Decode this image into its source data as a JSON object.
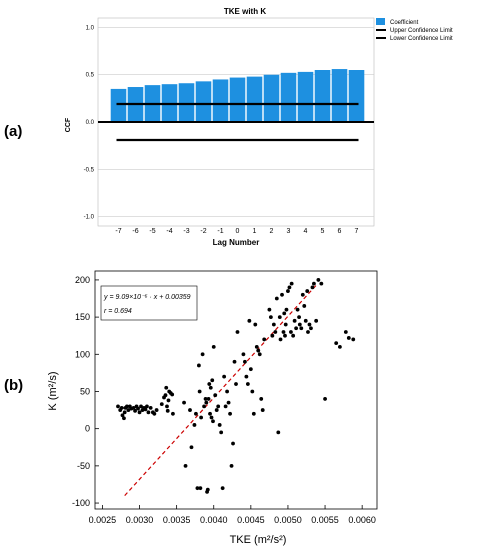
{
  "panel_a": {
    "label": "(a)",
    "chart_data": {
      "type": "bar",
      "title": "TKE with K",
      "xlabel": "Lag Number",
      "ylabel": "CCF",
      "ylim": [
        -1.1,
        1.1
      ],
      "yticks": [
        "1.0",
        "0.5",
        "0.0",
        "-0.5",
        "-1.0"
      ],
      "categories": [
        "-7",
        "-6",
        "-5",
        "-4",
        "-3",
        "-2",
        "-1",
        "0",
        "1",
        "2",
        "3",
        "4",
        "5",
        "6",
        "7"
      ],
      "series": [
        {
          "name": "Coefficient",
          "values": [
            0.35,
            0.37,
            0.39,
            0.4,
            0.41,
            0.43,
            0.45,
            0.47,
            0.48,
            0.5,
            0.52,
            0.53,
            0.55,
            0.56,
            0.55
          ]
        }
      ],
      "upper_confidence_limit": 0.19,
      "lower_confidence_limit": -0.19,
      "legend": [
        "Coefficient",
        "Upper Confidence Limit",
        "Lower Confidence Limit"
      ],
      "legend_position": "top-right",
      "colors": {
        "bar": "#1e90e0",
        "limit": "#000000",
        "zero_line": "#000000",
        "grid": "#cccccc"
      }
    }
  },
  "panel_b": {
    "label": "(b)",
    "chart_data": {
      "type": "scatter",
      "xlabel": "TKE (m²/s²)",
      "ylabel": "K (m²/s)",
      "xlim": [
        0.0024,
        0.0062
      ],
      "ylim": [
        -108,
        212
      ],
      "xticks": [
        "0.0025",
        "0.0030",
        "0.0035",
        "0.0040",
        "0.0045",
        "0.0050",
        "0.0055",
        "0.0060"
      ],
      "yticks": [
        "-100",
        "-50",
        "0",
        "50",
        "100",
        "150",
        "200"
      ],
      "annotation": {
        "equation": "y = 9.09×10⁻⁶ · x + 0.00359",
        "r": "r = 0.694"
      },
      "fit_line": {
        "x0": 0.0028,
        "y0": -90,
        "x1": 0.0054,
        "y1": 195,
        "color": "#cc0000",
        "style": "dashed"
      },
      "points": [
        [
          0.00271,
          30
        ],
        [
          0.00274,
          25
        ],
        [
          0.00276,
          28
        ],
        [
          0.00277,
          18
        ],
        [
          0.00279,
          14
        ],
        [
          0.0028,
          22
        ],
        [
          0.00281,
          28
        ],
        [
          0.00283,
          30
        ],
        [
          0.00285,
          25
        ],
        [
          0.00287,
          30
        ],
        [
          0.00289,
          27
        ],
        [
          0.00292,
          28
        ],
        [
          0.00294,
          24
        ],
        [
          0.00296,
          30
        ],
        [
          0.00298,
          27
        ],
        [
          0.003,
          22
        ],
        [
          0.00302,
          30
        ],
        [
          0.00304,
          25
        ],
        [
          0.00306,
          28
        ],
        [
          0.00308,
          26
        ],
        [
          0.0031,
          30
        ],
        [
          0.00312,
          22
        ],
        [
          0.00315,
          28
        ],
        [
          0.00318,
          22
        ],
        [
          0.0032,
          20
        ],
        [
          0.00323,
          25
        ],
        [
          0.0033,
          33
        ],
        [
          0.00333,
          42
        ],
        [
          0.00335,
          45
        ],
        [
          0.00336,
          55
        ],
        [
          0.00337,
          30
        ],
        [
          0.00338,
          24
        ],
        [
          0.00339,
          38
        ],
        [
          0.0034,
          50
        ],
        [
          0.00342,
          48
        ],
        [
          0.00344,
          46
        ],
        [
          0.00345,
          20
        ],
        [
          0.0036,
          35
        ],
        [
          0.00362,
          -50
        ],
        [
          0.00368,
          25
        ],
        [
          0.0037,
          -25
        ],
        [
          0.00374,
          5
        ],
        [
          0.00376,
          20
        ],
        [
          0.00378,
          -80
        ],
        [
          0.0038,
          85
        ],
        [
          0.00381,
          50
        ],
        [
          0.00382,
          -80
        ],
        [
          0.00383,
          15
        ],
        [
          0.00385,
          100
        ],
        [
          0.00387,
          30
        ],
        [
          0.00389,
          40
        ],
        [
          0.0039,
          35
        ],
        [
          0.00391,
          -85
        ],
        [
          0.00392,
          -82
        ],
        [
          0.00393,
          40
        ],
        [
          0.00394,
          60
        ],
        [
          0.00395,
          20
        ],
        [
          0.00396,
          55
        ],
        [
          0.00397,
          15
        ],
        [
          0.00398,
          65
        ],
        [
          0.00399,
          10
        ],
        [
          0.004,
          110
        ],
        [
          0.00402,
          45
        ],
        [
          0.00404,
          25
        ],
        [
          0.00406,
          30
        ],
        [
          0.00408,
          5
        ],
        [
          0.0041,
          -5
        ],
        [
          0.00412,
          -80
        ],
        [
          0.00414,
          70
        ],
        [
          0.00416,
          30
        ],
        [
          0.00418,
          50
        ],
        [
          0.0042,
          35
        ],
        [
          0.00422,
          20
        ],
        [
          0.00424,
          -50
        ],
        [
          0.00426,
          -20
        ],
        [
          0.00428,
          90
        ],
        [
          0.0043,
          60
        ],
        [
          0.00432,
          130
        ],
        [
          0.0044,
          100
        ],
        [
          0.00442,
          90
        ],
        [
          0.00444,
          70
        ],
        [
          0.00446,
          60
        ],
        [
          0.00448,
          145
        ],
        [
          0.0045,
          80
        ],
        [
          0.00452,
          50
        ],
        [
          0.00454,
          20
        ],
        [
          0.00456,
          140
        ],
        [
          0.00458,
          110
        ],
        [
          0.0046,
          105
        ],
        [
          0.00462,
          100
        ],
        [
          0.00464,
          40
        ],
        [
          0.00466,
          25
        ],
        [
          0.00468,
          120
        ],
        [
          0.00475,
          160
        ],
        [
          0.00477,
          150
        ],
        [
          0.00479,
          125
        ],
        [
          0.00481,
          140
        ],
        [
          0.00483,
          130
        ],
        [
          0.00485,
          175
        ],
        [
          0.00487,
          -5
        ],
        [
          0.00489,
          150
        ],
        [
          0.0049,
          120
        ],
        [
          0.00492,
          180
        ],
        [
          0.00494,
          130
        ],
        [
          0.00495,
          155
        ],
        [
          0.00496,
          125
        ],
        [
          0.00497,
          140
        ],
        [
          0.00498,
          160
        ],
        [
          0.005,
          185
        ],
        [
          0.00502,
          190
        ],
        [
          0.00504,
          130
        ],
        [
          0.00505,
          195
        ],
        [
          0.00507,
          125
        ],
        [
          0.00509,
          145
        ],
        [
          0.00511,
          135
        ],
        [
          0.00513,
          160
        ],
        [
          0.00515,
          150
        ],
        [
          0.00516,
          140
        ],
        [
          0.00518,
          135
        ],
        [
          0.0052,
          180
        ],
        [
          0.00522,
          165
        ],
        [
          0.00524,
          145
        ],
        [
          0.00526,
          185
        ],
        [
          0.00527,
          130
        ],
        [
          0.00529,
          140
        ],
        [
          0.00531,
          135
        ],
        [
          0.00533,
          190
        ],
        [
          0.00535,
          195
        ],
        [
          0.00538,
          145
        ],
        [
          0.00541,
          200
        ],
        [
          0.00545,
          195
        ],
        [
          0.0055,
          40
        ],
        [
          0.00565,
          115
        ],
        [
          0.0057,
          110
        ],
        [
          0.00578,
          130
        ],
        [
          0.00582,
          122
        ],
        [
          0.00588,
          120
        ]
      ],
      "colors": {
        "point": "#000000"
      }
    }
  }
}
